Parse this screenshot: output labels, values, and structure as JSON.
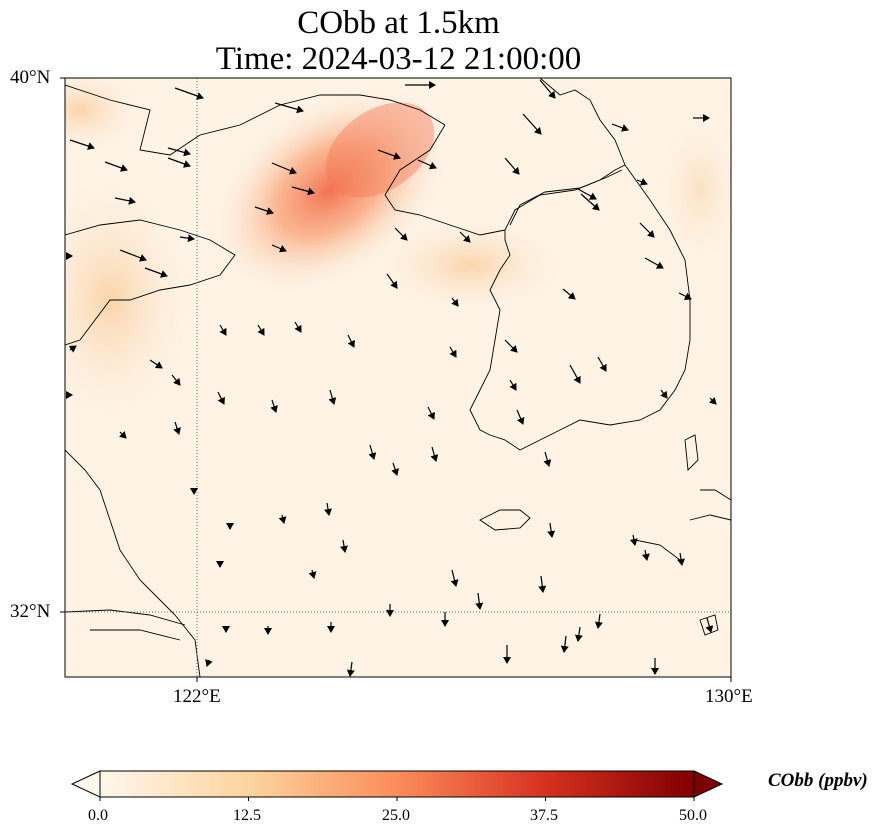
{
  "figure": {
    "title_line1": "CObb at 1.5km",
    "title_line2": "Time: 2024-03-12 21:00:00"
  },
  "map": {
    "lat_ticks": [
      "40°N",
      "32°N"
    ],
    "lon_ticks": [
      "122°E",
      "130°E"
    ],
    "extent": {
      "lon": [
        120,
        130
      ],
      "lat": [
        31,
        40
      ]
    },
    "gridlines": "dotted",
    "field": "CObb",
    "wind_vectors": true
  },
  "colorbar": {
    "label": "CObb (ppbv)",
    "ticks": [
      "0.0",
      "12.5",
      "25.0",
      "37.5",
      "50.0"
    ],
    "range": [
      0,
      50
    ],
    "colormap": "OrRd",
    "extend": "both",
    "colors": [
      "#fff7ec",
      "#fdd49e",
      "#fc8d59",
      "#d7301f",
      "#7f0000"
    ]
  },
  "chart_data": {
    "type": "heatmap",
    "title": "CObb at 1.5km\nTime: 2024-03-12 21:00:00",
    "xlabel": "",
    "ylabel": "",
    "xlim": [
      120,
      130
    ],
    "ylim": [
      31,
      40
    ],
    "colorbar_range": [
      0,
      50
    ],
    "colorbar_label": "CObb (ppbv)",
    "features": [
      {
        "name": "high concentration plume",
        "lon": [
          121,
          125
        ],
        "lat": [
          36,
          40
        ],
        "peak_value": 22
      },
      {
        "name": "moderate area west coast",
        "lon": [
          120,
          122.5
        ],
        "lat": [
          34,
          39
        ],
        "peak_value": 10
      },
      {
        "name": "moderate band Korea west",
        "lon": [
          124,
          127
        ],
        "lat": [
          35.5,
          37.5
        ],
        "peak_value": 6
      }
    ]
  }
}
